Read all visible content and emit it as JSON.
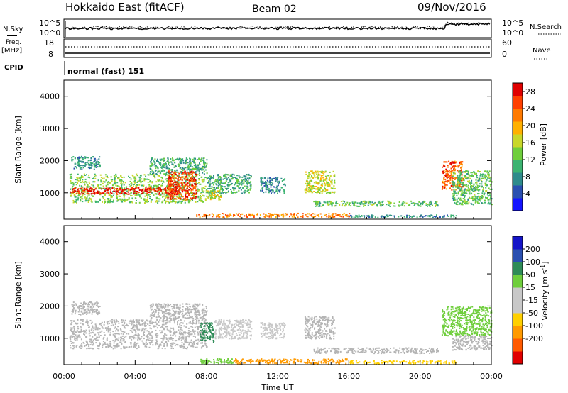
{
  "header": {
    "station": "Hokkaido East (fitACF)",
    "beam": "Beam 02",
    "date": "09/Nov/2016"
  },
  "top_panels": {
    "nsky_label": "N.Sky",
    "nsky_ticks": [
      "10^5",
      "10^0"
    ],
    "nsearch_label": "N.Search",
    "nsearch_ticks": [
      "10^5",
      "10^0"
    ],
    "freq_label_1": "Freq.",
    "freq_label_2": "[MHz]",
    "freq_ticks": [
      "18",
      "8"
    ],
    "nave_label": "Nave",
    "nave_ticks": [
      "60",
      "0"
    ],
    "cpid_label": "CPID",
    "cpid_text": "normal (fast) 151"
  },
  "colors": {
    "power_scale": [
      "#1414ff",
      "#2a4fb0",
      "#2e8b8b",
      "#3cb371",
      "#6fce3c",
      "#c8d72a",
      "#ffb000",
      "#ff7a00",
      "#ff4000",
      "#e00000"
    ],
    "velocity_scale": [
      "#e00000",
      "#ff5a00",
      "#ff9a00",
      "#ffd000",
      "#c8c8c8",
      "#c8c8c8",
      "#6fce3c",
      "#2e8b57",
      "#2a4fb0",
      "#1414c8"
    ],
    "ground_scatter": "#b4b4b4"
  },
  "chart_data": [
    {
      "type": "heatmap",
      "panel": "power",
      "ylabel": "Slant Range [km]",
      "xlabel": "",
      "ylim": [
        180,
        4500
      ],
      "xlim_hours": [
        0,
        24
      ],
      "x_tick_labels": [
        "00:00",
        "04:00",
        "08:00",
        "12:00",
        "16:00",
        "20:00",
        "00:00"
      ],
      "y_tick_labels": [
        "1000",
        "2000",
        "3000",
        "4000"
      ],
      "colorbar": {
        "label": "Power [dB]",
        "ticks": [
          "4",
          "8",
          "12",
          "16",
          "20",
          "24",
          "28"
        ],
        "range": [
          0,
          30
        ]
      },
      "echo_regions": [
        {
          "t0": 0.4,
          "t1": 2.0,
          "r0": 1750,
          "r1": 2150,
          "value": 8
        },
        {
          "t0": 0.3,
          "t1": 8.0,
          "r0": 700,
          "r1": 1600,
          "value": 14
        },
        {
          "t0": 0.3,
          "t1": 6.5,
          "r0": 980,
          "r1": 1180,
          "value": 28
        },
        {
          "t0": 4.8,
          "t1": 8.0,
          "r0": 1600,
          "r1": 2100,
          "value": 10
        },
        {
          "t0": 5.8,
          "t1": 7.4,
          "r0": 800,
          "r1": 1700,
          "value": 26
        },
        {
          "t0": 8.0,
          "t1": 10.5,
          "r0": 1000,
          "r1": 1600,
          "value": 10
        },
        {
          "t0": 8.0,
          "t1": 8.8,
          "r0": 800,
          "r1": 1100,
          "value": 16
        },
        {
          "t0": 11.0,
          "t1": 12.4,
          "r0": 1000,
          "r1": 1500,
          "value": 8
        },
        {
          "t0": 13.5,
          "t1": 15.2,
          "r0": 1000,
          "r1": 1700,
          "value": 16
        },
        {
          "t0": 7.4,
          "t1": 16.0,
          "r0": 260,
          "r1": 380,
          "value": 22
        },
        {
          "t0": 14.0,
          "t1": 21.0,
          "r0": 600,
          "r1": 760,
          "value": 12
        },
        {
          "t0": 16.0,
          "t1": 22.0,
          "r0": 250,
          "r1": 330,
          "value": 8
        },
        {
          "t0": 21.2,
          "t1": 22.4,
          "r0": 1100,
          "r1": 2000,
          "value": 24
        },
        {
          "t0": 21.8,
          "t1": 24.0,
          "r0": 650,
          "r1": 1700,
          "value": 12
        }
      ]
    },
    {
      "type": "heatmap",
      "panel": "velocity",
      "ylabel": "Slant Range [km]",
      "xlabel": "Time UT",
      "ylim": [
        180,
        4500
      ],
      "xlim_hours": [
        0,
        24
      ],
      "x_tick_labels": [
        "00:00",
        "04:00",
        "08:00",
        "12:00",
        "16:00",
        "20:00",
        "00:00"
      ],
      "y_tick_labels": [
        "1000",
        "2000",
        "3000",
        "4000"
      ],
      "colorbar": {
        "label": "Velocity [m s",
        "label_superscript": "-1",
        "label_close": "]",
        "ticks": [
          "200",
          "100",
          "50",
          "15",
          "-15",
          "-50",
          "-100",
          "-200"
        ],
        "range": [
          -250,
          250
        ]
      },
      "echo_regions": [
        {
          "t0": 0.4,
          "t1": 2.0,
          "r0": 1750,
          "r1": 2150,
          "value": 0,
          "ground": true
        },
        {
          "t0": 0.3,
          "t1": 8.0,
          "r0": 700,
          "r1": 1600,
          "value": 0,
          "ground": true
        },
        {
          "t0": 4.8,
          "t1": 8.0,
          "r0": 1600,
          "r1": 2100,
          "value": 0,
          "ground": true
        },
        {
          "t0": 7.6,
          "t1": 8.4,
          "r0": 900,
          "r1": 1500,
          "value": 60
        },
        {
          "t0": 8.4,
          "t1": 10.5,
          "r0": 1000,
          "r1": 1600,
          "value": 5
        },
        {
          "t0": 11.0,
          "t1": 12.4,
          "r0": 1000,
          "r1": 1500,
          "value": 5
        },
        {
          "t0": 13.5,
          "t1": 15.2,
          "r0": 1000,
          "r1": 1700,
          "value": 0,
          "ground": true
        },
        {
          "t0": 7.6,
          "t1": 9.5,
          "r0": 230,
          "r1": 380,
          "value": 40
        },
        {
          "t0": 9.5,
          "t1": 16.0,
          "r0": 230,
          "r1": 380,
          "value": -60
        },
        {
          "t0": 14.0,
          "t1": 21.0,
          "r0": 550,
          "r1": 720,
          "value": 0,
          "ground": true
        },
        {
          "t0": 16.0,
          "t1": 22.0,
          "r0": 230,
          "r1": 330,
          "value": -40
        },
        {
          "t0": 21.2,
          "t1": 24.0,
          "r0": 1100,
          "r1": 2000,
          "value": 40
        },
        {
          "t0": 21.8,
          "t1": 24.0,
          "r0": 650,
          "r1": 1100,
          "value": 0,
          "ground": true
        }
      ]
    }
  ]
}
